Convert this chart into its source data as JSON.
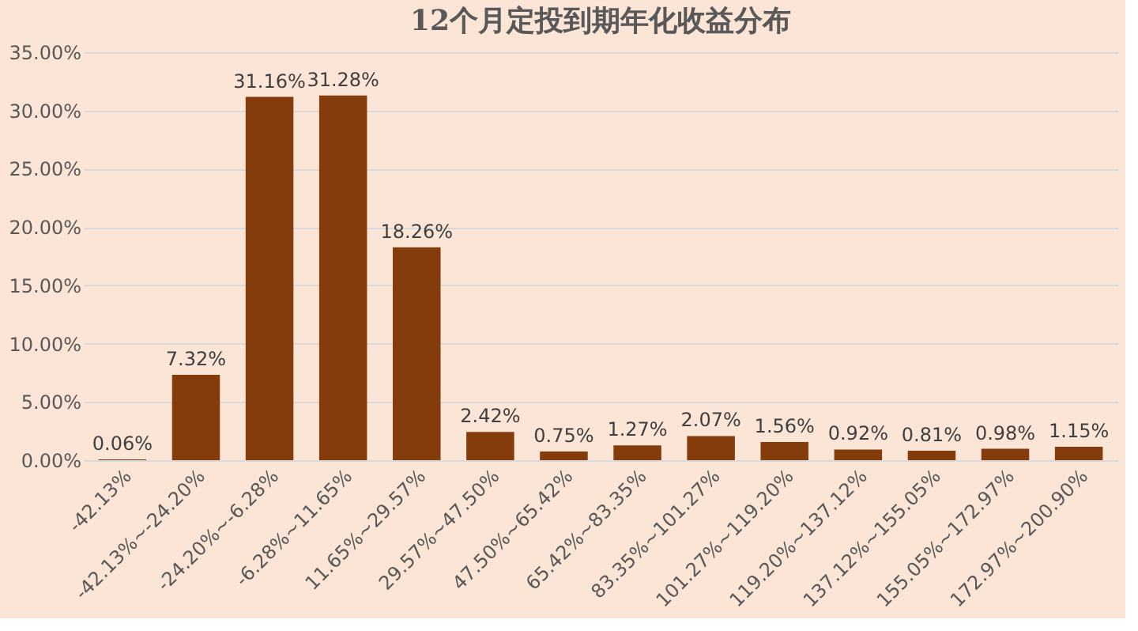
{
  "chart_data": {
    "type": "bar",
    "title": "12个月定投到期年化收益分布",
    "categories": [
      "-42.13%",
      "-42.13%~-24.20%",
      "-24.20%~-6.28%",
      "-6.28%~11.65%",
      "11.65%~29.57%",
      "29.57%~47.50%",
      "47.50%~65.42%",
      "65.42%~83.35%",
      "83.35%~101.27%",
      "101.27%~119.20%",
      "119.20%~137.12%",
      "137.12%~155.05%",
      "155.05%~172.97%",
      "172.97%~200.90%"
    ],
    "values": [
      0.06,
      7.32,
      31.16,
      31.28,
      18.26,
      2.42,
      0.75,
      1.27,
      2.07,
      1.56,
      0.92,
      0.81,
      0.98,
      1.15
    ],
    "value_labels": [
      "0.06%",
      "7.32%",
      "31.16%",
      "31.28%",
      "18.26%",
      "2.42%",
      "0.75%",
      "1.27%",
      "2.07%",
      "1.56%",
      "0.92%",
      "0.81%",
      "0.98%",
      "1.15%"
    ],
    "color": "#843c0c",
    "ylim": [
      0,
      35
    ],
    "yticks": [
      {
        "value": 0,
        "label": "0.00%"
      },
      {
        "value": 5,
        "label": "5.00%"
      },
      {
        "value": 10,
        "label": "10.00%"
      },
      {
        "value": 15,
        "label": "15.00%"
      },
      {
        "value": 20,
        "label": "20.00%"
      },
      {
        "value": 25,
        "label": "25.00%"
      },
      {
        "value": 30,
        "label": "30.00%"
      },
      {
        "value": 35,
        "label": "35.00%"
      }
    ],
    "grid": "y",
    "legend": false
  }
}
